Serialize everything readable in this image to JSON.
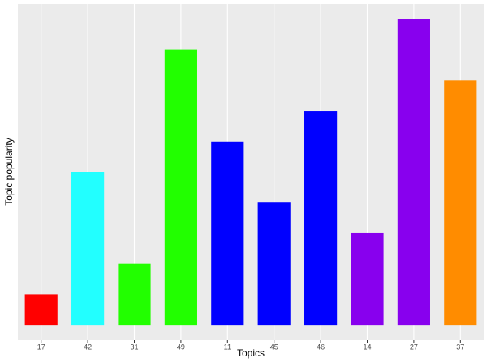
{
  "chart_data": {
    "type": "bar",
    "x_label": "Topics",
    "y_label": "Topic popularity",
    "categories": [
      "17",
      "42",
      "31",
      "49",
      "11",
      "45",
      "46",
      "14",
      "27",
      "37"
    ],
    "values": [
      1,
      5,
      2,
      9,
      6,
      4,
      7,
      3,
      10,
      8
    ],
    "colors": [
      "#ff0000",
      "#22ffff",
      "#22ff00",
      "#22ff00",
      "#0000ff",
      "#0000ff",
      "#0000ff",
      "#8800ee",
      "#8800ee",
      "#ff8c00"
    ],
    "ylim": [
      -0.5,
      10.5
    ],
    "grid": true
  }
}
